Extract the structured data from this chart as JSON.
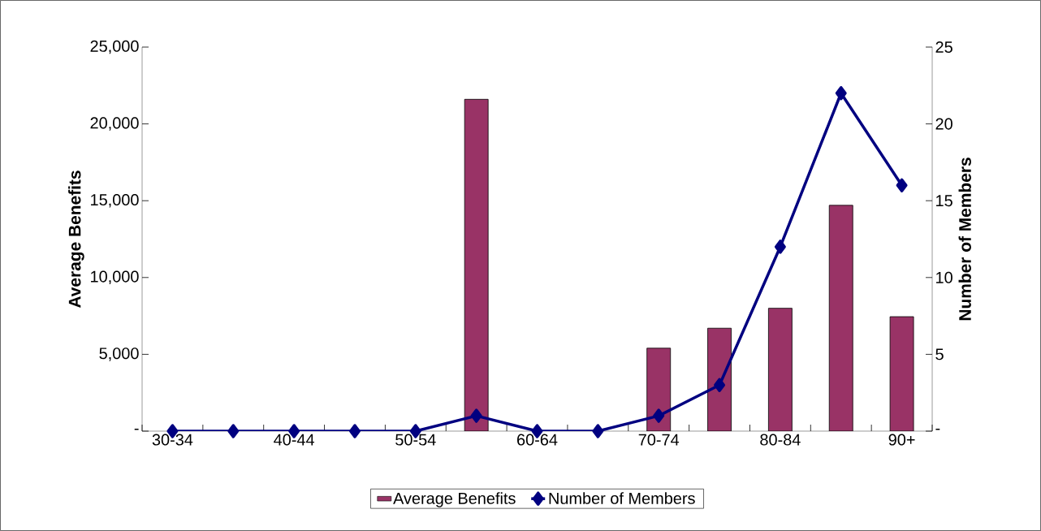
{
  "chart_data": {
    "type": "bar",
    "ylabel": "Average Benefits",
    "y2label": "Number of Members",
    "categories": [
      "30-34",
      null,
      "40-44",
      null,
      "50-54",
      null,
      "60-64",
      null,
      "70-74",
      null,
      "80-84",
      null,
      "90+"
    ],
    "series": [
      {
        "name": "Average Benefits",
        "color": "#993366",
        "values": [
          null,
          null,
          null,
          null,
          null,
          21600,
          null,
          null,
          5400,
          6700,
          8000,
          14700,
          7450
        ]
      },
      {
        "name": "Number of Members",
        "type": "line",
        "axis": "y2",
        "color": "#000080",
        "values": [
          0,
          0,
          0,
          0,
          0,
          1,
          0,
          0,
          1,
          3,
          12,
          22,
          16
        ]
      }
    ],
    "ylim": [
      0,
      25000
    ],
    "yticks": [
      {
        "value": 0,
        "label": "-"
      },
      {
        "value": 5000,
        "label": "5,000"
      },
      {
        "value": 10000,
        "label": "10,000"
      },
      {
        "value": 15000,
        "label": "15,000"
      },
      {
        "value": 20000,
        "label": "20,000"
      },
      {
        "value": 25000,
        "label": "25,000"
      }
    ],
    "y2lim": [
      0,
      25
    ],
    "y2ticks": [
      {
        "value": 0,
        "label": "-"
      },
      5,
      10,
      15,
      20,
      25
    ],
    "marker": "diamond",
    "line_style": "solid",
    "legend": "bottom"
  }
}
